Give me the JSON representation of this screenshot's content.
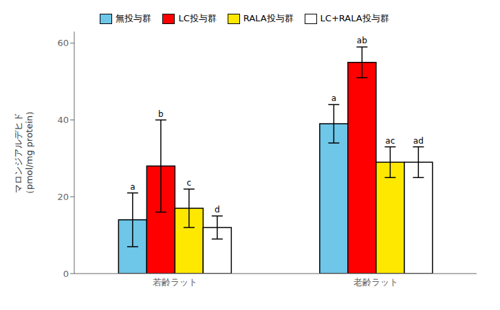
{
  "chart_data": {
    "type": "bar",
    "categories": [
      "若齢ラット",
      "老齢ラット"
    ],
    "series": [
      {
        "name": "無投与群",
        "color": "#6EC6E8",
        "values": [
          14,
          39
        ],
        "errors": [
          7,
          5
        ],
        "annotations": [
          "a",
          "a"
        ]
      },
      {
        "name": "LC投与群",
        "color": "#FF0000",
        "values": [
          28,
          55
        ],
        "errors": [
          12,
          4
        ],
        "annotations": [
          "b",
          "ab"
        ]
      },
      {
        "name": "RALA投与群",
        "color": "#FFE800",
        "values": [
          17,
          29
        ],
        "errors": [
          5,
          4
        ],
        "annotations": [
          "c",
          "ac"
        ]
      },
      {
        "name": "LC+RALA投与群",
        "color": "#FFFFFF",
        "values": [
          12,
          29
        ],
        "errors": [
          3,
          4
        ],
        "annotations": [
          "d",
          "ad"
        ]
      }
    ],
    "ylabel": "マロンジアルデヒド\n（pmol/mg protein）",
    "ylim": [
      0,
      63
    ],
    "yticks": [
      0,
      20,
      40,
      60
    ],
    "grid": false,
    "legend": "top"
  }
}
